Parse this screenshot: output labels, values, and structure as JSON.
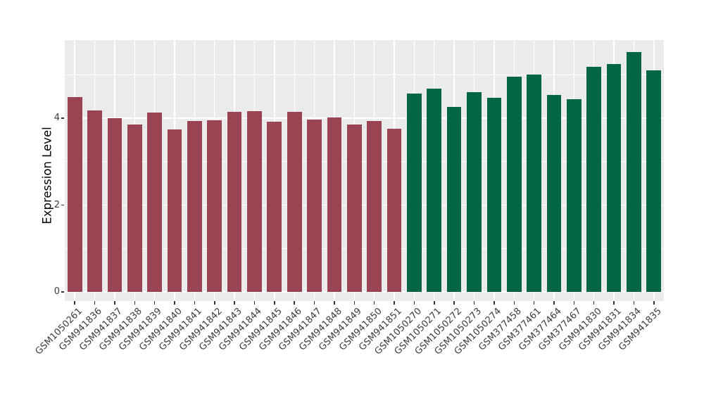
{
  "chart_data": {
    "type": "bar",
    "title": "",
    "xlabel": "",
    "ylabel": "Expression Level",
    "categories": [
      "GSM1050261",
      "GSM941836",
      "GSM941837",
      "GSM941838",
      "GSM941839",
      "GSM941840",
      "GSM941841",
      "GSM941842",
      "GSM941843",
      "GSM941844",
      "GSM941845",
      "GSM941846",
      "GSM941847",
      "GSM941848",
      "GSM941849",
      "GSM941850",
      "GSM941851",
      "GSM1050270",
      "GSM1050271",
      "GSM1050272",
      "GSM1050273",
      "GSM1050274",
      "GSM377458",
      "GSM377461",
      "GSM377464",
      "GSM377467",
      "GSM941830",
      "GSM941831",
      "GSM941834",
      "GSM941835"
    ],
    "values": [
      4.49,
      4.18,
      4.0,
      3.86,
      4.12,
      3.74,
      3.94,
      3.95,
      4.14,
      4.16,
      3.92,
      4.15,
      3.97,
      4.01,
      3.85,
      3.93,
      3.76,
      4.56,
      4.67,
      4.26,
      4.6,
      4.47,
      4.95,
      5.0,
      4.53,
      4.44,
      5.18,
      5.25,
      5.52,
      5.09
    ],
    "groups": [
      "group1",
      "group1",
      "group1",
      "group1",
      "group1",
      "group1",
      "group1",
      "group1",
      "group1",
      "group1",
      "group1",
      "group1",
      "group1",
      "group1",
      "group1",
      "group1",
      "group1",
      "group2",
      "group2",
      "group2",
      "group2",
      "group2",
      "group2",
      "group2",
      "group2",
      "group2",
      "group2",
      "group2",
      "group2",
      "group2"
    ],
    "group_colors": {
      "group1": "#9A4352",
      "group2": "#006646"
    },
    "yticks": [
      0,
      2,
      4
    ],
    "minor_yticks": [
      1,
      3,
      5
    ],
    "ylim": [
      -0.207,
      5.793
    ],
    "grid": true,
    "legend_position": "none",
    "panel_background": "#EBEBEB",
    "gridline_color": "#FFFFFF",
    "tick_label_color": "#3c3c3c",
    "x_label_rotation_deg": 45
  }
}
